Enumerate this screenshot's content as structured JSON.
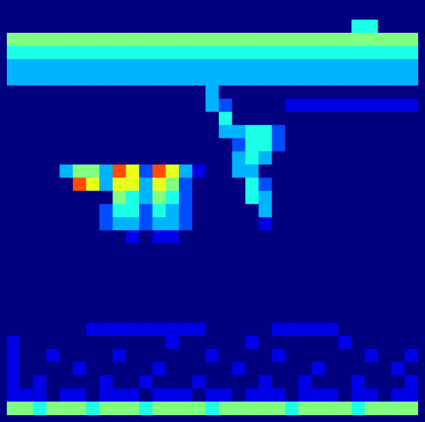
{
  "chart_data": {
    "type": "heatmap",
    "tick_labels": false,
    "xlim": [
      0,
      31
    ],
    "ylim": [
      0,
      31
    ],
    "color_range": [
      0,
      10
    ],
    "cells": [
      [
        0,
        0,
        0,
        0,
        0,
        0,
        0,
        0,
        0,
        0,
        0,
        0,
        0,
        0,
        0,
        0,
        0,
        0,
        0,
        0,
        0,
        0,
        0,
        0,
        0,
        0,
        0,
        0,
        0,
        0,
        0
      ],
      [
        0,
        0,
        0,
        0,
        0,
        0,
        0,
        0,
        0,
        0,
        0,
        0,
        0,
        0,
        0,
        0,
        0,
        0,
        0,
        0,
        0,
        0,
        0,
        0,
        0,
        0,
        4,
        4,
        0,
        0,
        0
      ],
      [
        5,
        5,
        5,
        5,
        5,
        5,
        5,
        5,
        5,
        5,
        5,
        5,
        5,
        5,
        5,
        5,
        5,
        5,
        5,
        5,
        5,
        5,
        5,
        5,
        5,
        5,
        5,
        5,
        5,
        5,
        5
      ],
      [
        4,
        4,
        4,
        4,
        4,
        4,
        4,
        4,
        4,
        4,
        4,
        4,
        4,
        4,
        4,
        4,
        4,
        4,
        4,
        4,
        4,
        4,
        4,
        4,
        4,
        4,
        4,
        4,
        4,
        4,
        4
      ],
      [
        3,
        3,
        3,
        3,
        3,
        3,
        3,
        3,
        3,
        3,
        3,
        3,
        3,
        3,
        3,
        3,
        3,
        3,
        3,
        3,
        3,
        3,
        3,
        3,
        3,
        3,
        3,
        3,
        3,
        3,
        3
      ],
      [
        3,
        3,
        3,
        3,
        3,
        3,
        3,
        3,
        3,
        3,
        3,
        3,
        3,
        3,
        3,
        3,
        3,
        3,
        3,
        3,
        3,
        3,
        3,
        3,
        3,
        3,
        3,
        3,
        3,
        3,
        3
      ],
      [
        0,
        0,
        0,
        0,
        0,
        0,
        0,
        0,
        0,
        0,
        0,
        0,
        0,
        0,
        0,
        3,
        0,
        0,
        0,
        0,
        0,
        0,
        0,
        0,
        0,
        0,
        0,
        0,
        0,
        0,
        0
      ],
      [
        0,
        0,
        0,
        0,
        0,
        0,
        0,
        0,
        0,
        0,
        0,
        0,
        0,
        0,
        0,
        3,
        2,
        0,
        0,
        0,
        0,
        1,
        1,
        1,
        1,
        1,
        1,
        1,
        1,
        1,
        1
      ],
      [
        0,
        0,
        0,
        0,
        0,
        0,
        0,
        0,
        0,
        0,
        0,
        0,
        0,
        0,
        0,
        0,
        4,
        0,
        0,
        0,
        0,
        0,
        0,
        0,
        0,
        0,
        0,
        0,
        0,
        0,
        0
      ],
      [
        0,
        0,
        0,
        0,
        0,
        0,
        0,
        0,
        0,
        0,
        0,
        0,
        0,
        0,
        0,
        0,
        3,
        3,
        4,
        4,
        2,
        0,
        0,
        0,
        0,
        0,
        0,
        0,
        0,
        0,
        0
      ],
      [
        0,
        0,
        0,
        0,
        0,
        0,
        0,
        0,
        0,
        0,
        0,
        0,
        0,
        0,
        0,
        0,
        0,
        2,
        4,
        4,
        2,
        0,
        0,
        0,
        0,
        0,
        0,
        0,
        0,
        0,
        0
      ],
      [
        0,
        0,
        0,
        0,
        0,
        0,
        0,
        0,
        0,
        0,
        0,
        0,
        0,
        0,
        0,
        0,
        0,
        3,
        4,
        3,
        0,
        0,
        0,
        0,
        0,
        0,
        0,
        0,
        0,
        0,
        0
      ],
      [
        0,
        0,
        0,
        0,
        3,
        5,
        5,
        3,
        8,
        6,
        2,
        8,
        6,
        3,
        1,
        0,
        0,
        3,
        3,
        0,
        0,
        0,
        0,
        0,
        0,
        0,
        0,
        0,
        0,
        0,
        0
      ],
      [
        0,
        0,
        0,
        0,
        0,
        8,
        6,
        3,
        6,
        6,
        3,
        6,
        5,
        2,
        0,
        0,
        0,
        0,
        4,
        2,
        0,
        0,
        0,
        0,
        0,
        0,
        0,
        0,
        0,
        0,
        0
      ],
      [
        0,
        0,
        0,
        0,
        0,
        0,
        0,
        0,
        5,
        4,
        3,
        5,
        4,
        2,
        0,
        0,
        0,
        0,
        4,
        3,
        0,
        0,
        0,
        0,
        0,
        0,
        0,
        0,
        0,
        0,
        0
      ],
      [
        0,
        0,
        0,
        0,
        0,
        0,
        0,
        2,
        4,
        4,
        2,
        4,
        3,
        2,
        0,
        0,
        0,
        0,
        0,
        3,
        0,
        0,
        0,
        0,
        0,
        0,
        0,
        0,
        0,
        0,
        0
      ],
      [
        0,
        0,
        0,
        0,
        0,
        0,
        0,
        2,
        3,
        3,
        2,
        3,
        3,
        2,
        0,
        0,
        0,
        0,
        0,
        1,
        0,
        0,
        0,
        0,
        0,
        0,
        0,
        0,
        0,
        0,
        0
      ],
      [
        0,
        0,
        0,
        0,
        0,
        0,
        0,
        0,
        0,
        1,
        0,
        1,
        1,
        0,
        0,
        0,
        0,
        0,
        0,
        0,
        0,
        0,
        0,
        0,
        0,
        0,
        0,
        0,
        0,
        0,
        0
      ],
      [
        0,
        0,
        0,
        0,
        0,
        0,
        0,
        0,
        0,
        0,
        0,
        0,
        0,
        0,
        0,
        0,
        0,
        0,
        0,
        0,
        0,
        0,
        0,
        0,
        0,
        0,
        0,
        0,
        0,
        0,
        0
      ],
      [
        0,
        0,
        0,
        0,
        0,
        0,
        0,
        0,
        0,
        0,
        0,
        0,
        0,
        0,
        0,
        0,
        0,
        0,
        0,
        0,
        0,
        0,
        0,
        0,
        0,
        0,
        0,
        0,
        0,
        0,
        0
      ],
      [
        0,
        0,
        0,
        0,
        0,
        0,
        0,
        0,
        0,
        0,
        0,
        0,
        0,
        0,
        0,
        0,
        0,
        0,
        0,
        0,
        0,
        0,
        0,
        0,
        0,
        0,
        0,
        0,
        0,
        0,
        0
      ],
      [
        0,
        0,
        0,
        0,
        0,
        0,
        0,
        0,
        0,
        0,
        0,
        0,
        0,
        0,
        0,
        0,
        0,
        0,
        0,
        0,
        0,
        0,
        0,
        0,
        0,
        0,
        0,
        0,
        0,
        0,
        0
      ],
      [
        0,
        0,
        0,
        0,
        0,
        0,
        0,
        0,
        0,
        0,
        0,
        0,
        0,
        0,
        0,
        0,
        0,
        0,
        0,
        0,
        0,
        0,
        0,
        0,
        0,
        0,
        0,
        0,
        0,
        0,
        0
      ],
      [
        0,
        0,
        0,
        0,
        0,
        0,
        0,
        0,
        0,
        0,
        0,
        0,
        0,
        0,
        0,
        0,
        0,
        0,
        0,
        0,
        0,
        0,
        0,
        0,
        0,
        0,
        0,
        0,
        0,
        0,
        0
      ],
      [
        0,
        0,
        0,
        0,
        0,
        0,
        1,
        1,
        1,
        1,
        1,
        1,
        1,
        1,
        1,
        0,
        0,
        0,
        0,
        0,
        1,
        1,
        1,
        1,
        1,
        0,
        0,
        0,
        0,
        0,
        0
      ],
      [
        1,
        0,
        0,
        0,
        0,
        0,
        0,
        0,
        0,
        0,
        0,
        0,
        1,
        0,
        0,
        0,
        0,
        0,
        1,
        0,
        0,
        0,
        0,
        0,
        0,
        1,
        0,
        0,
        0,
        0,
        0
      ],
      [
        1,
        0,
        0,
        1,
        0,
        0,
        0,
        0,
        1,
        0,
        0,
        0,
        0,
        0,
        0,
        1,
        0,
        0,
        0,
        0,
        1,
        0,
        0,
        0,
        0,
        0,
        0,
        1,
        0,
        0,
        1
      ],
      [
        1,
        0,
        0,
        0,
        0,
        1,
        0,
        0,
        0,
        0,
        0,
        1,
        0,
        0,
        0,
        0,
        0,
        1,
        0,
        0,
        0,
        0,
        0,
        1,
        0,
        0,
        0,
        0,
        0,
        1,
        0
      ],
      [
        1,
        0,
        1,
        0,
        0,
        0,
        0,
        1,
        0,
        0,
        1,
        0,
        0,
        0,
        1,
        0,
        0,
        0,
        0,
        1,
        0,
        0,
        1,
        0,
        0,
        0,
        1,
        0,
        0,
        0,
        1
      ],
      [
        1,
        1,
        1,
        0,
        1,
        1,
        0,
        1,
        1,
        1,
        0,
        1,
        1,
        1,
        0,
        1,
        1,
        0,
        1,
        1,
        1,
        0,
        1,
        1,
        1,
        0,
        1,
        1,
        0,
        1,
        1
      ],
      [
        5,
        5,
        4,
        5,
        5,
        5,
        4,
        5,
        5,
        5,
        4,
        5,
        5,
        5,
        5,
        4,
        5,
        5,
        5,
        5,
        5,
        4,
        5,
        5,
        5,
        5,
        4,
        5,
        5,
        5,
        5
      ]
    ]
  }
}
